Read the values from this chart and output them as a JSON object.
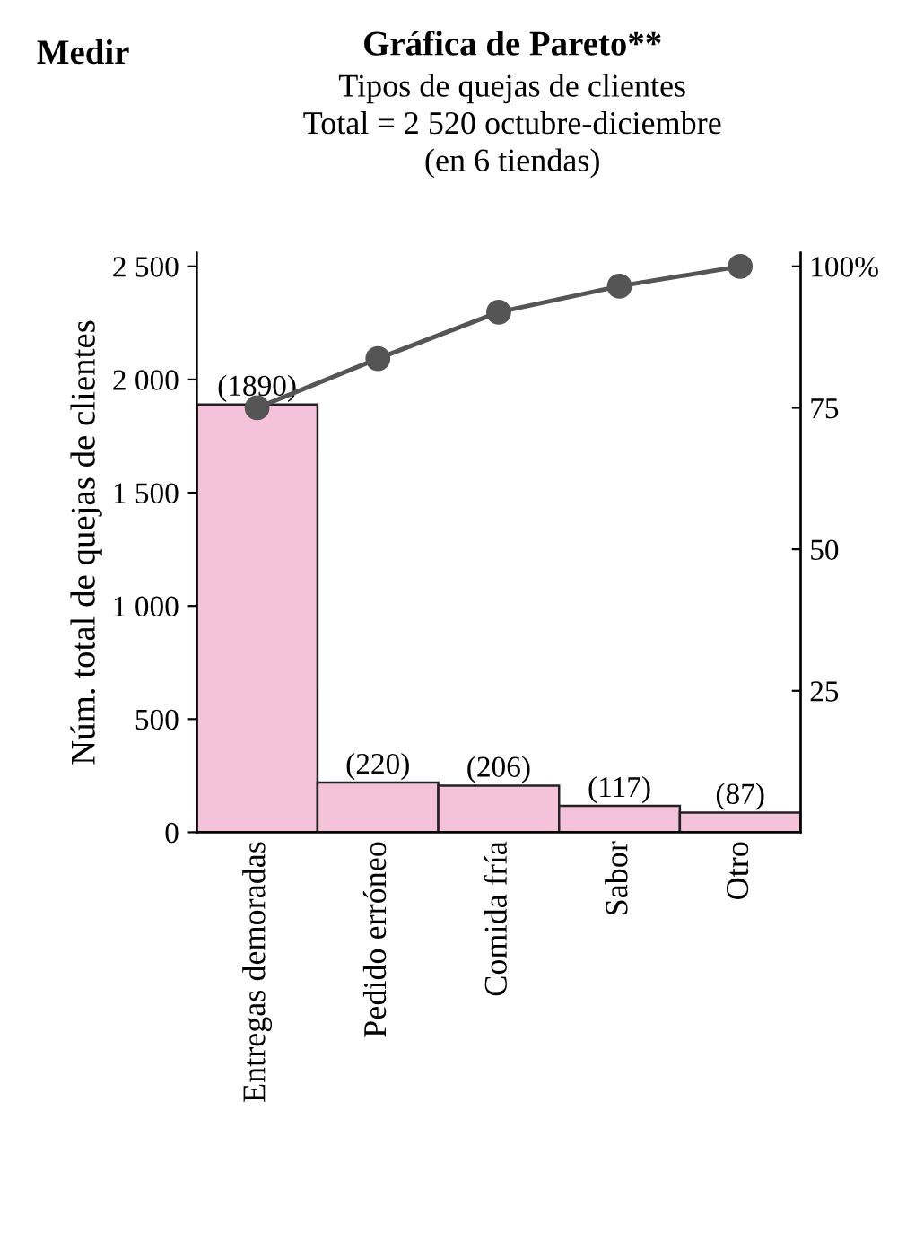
{
  "chart_data": {
    "type": "bar",
    "title": "Gráfica de Pareto**",
    "subtitle": "Tipos de quejas de clientes\nTotal = 2 520 octubre-diciembre\n(en 6 tiendas)",
    "ylabel": "Núm. total de quejas de clientes",
    "annotations": [
      "Medir"
    ],
    "categories": [
      "Entregas demoradas",
      "Pedido erróneo",
      "Comida fría",
      "Sabor",
      "Otro"
    ],
    "series": [
      {
        "color": "#f4c3d9",
        "values": [
          1890,
          220,
          206,
          117,
          87
        ],
        "value_labels": [
          "(1890)",
          "(220)",
          "(206)",
          "(117)",
          "(87)"
        ]
      },
      {
        "type": "line",
        "axis": "y2",
        "color": "#555555",
        "values": [
          75.0,
          83.7,
          91.9,
          96.5,
          100
        ],
        "marker": "circle",
        "line_style": "solid"
      }
    ],
    "ylim": [
      0,
      2560
    ],
    "yticks": [
      0,
      500,
      {
        "value": 1000,
        "label": "1 000"
      },
      {
        "value": 1500,
        "label": "1 500"
      },
      {
        "value": 2000,
        "label": "2 000"
      },
      {
        "value": 2500,
        "label": "2 500"
      }
    ],
    "y2lim": [
      0,
      102.4
    ],
    "y2ticks": [
      25,
      50,
      75,
      {
        "value": 100,
        "label": "100%"
      }
    ],
    "grid": false,
    "legend": false
  }
}
